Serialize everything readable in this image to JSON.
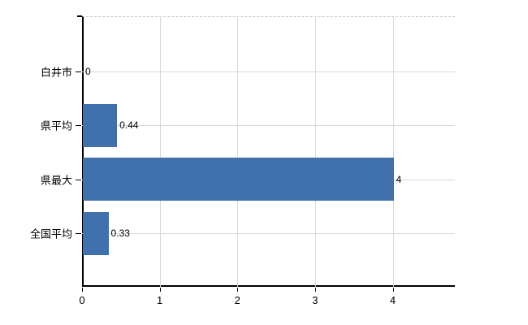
{
  "chart_data": {
    "type": "bar",
    "orientation": "horizontal",
    "title": "",
    "xlabel": "",
    "ylabel": "",
    "categories": [
      "白井市",
      "県平均",
      "県最大",
      "全国平均"
    ],
    "values": [
      0,
      0.44,
      4,
      0.33
    ],
    "value_labels": [
      "0",
      "0.44",
      "4",
      "0.33"
    ],
    "x_ticks": [
      0,
      1,
      2,
      3,
      4
    ],
    "x_tick_labels": [
      "0",
      "1",
      "2",
      "3",
      "4"
    ],
    "xlim": [
      0,
      4.8
    ],
    "grid": true,
    "legend": false,
    "colors": {
      "bar": "#4171ac",
      "grid": "#d9d9d9",
      "axis": "#000000",
      "text": "#000000",
      "background": "#ffffff",
      "top_border": "#c8c8c8"
    }
  }
}
